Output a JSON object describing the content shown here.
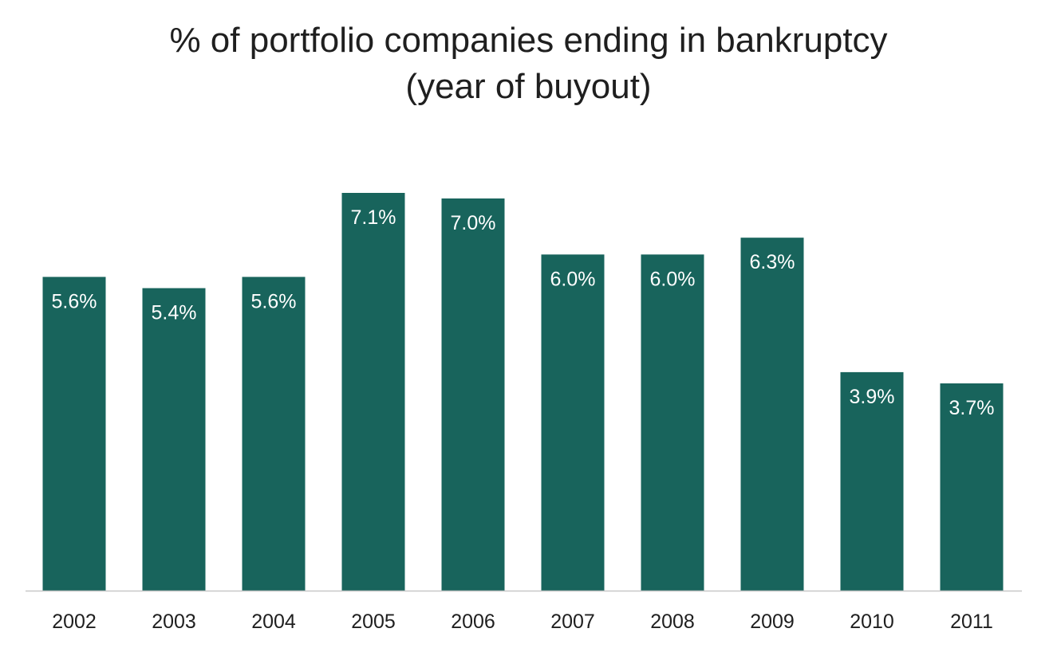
{
  "chart_data": {
    "type": "bar",
    "title_line1": "% of portfolio companies ending in bankruptcy",
    "title_line2": "(year of buyout)",
    "xlabel": "",
    "ylabel": "",
    "categories": [
      "2002",
      "2003",
      "2004",
      "2005",
      "2006",
      "2007",
      "2008",
      "2009",
      "2010",
      "2011"
    ],
    "values": [
      5.6,
      5.4,
      5.6,
      7.1,
      7.0,
      6.0,
      6.0,
      6.3,
      3.9,
      3.7
    ],
    "value_labels": [
      "5.6%",
      "5.4%",
      "5.6%",
      "7.1%",
      "7.0%",
      "6.0%",
      "6.0%",
      "6.3%",
      "3.9%",
      "3.7%"
    ],
    "ylim": [
      0,
      7.1
    ],
    "grid": false,
    "legend": "none",
    "bar_color": "#18645C",
    "axis_color": "#c8c8c8"
  }
}
